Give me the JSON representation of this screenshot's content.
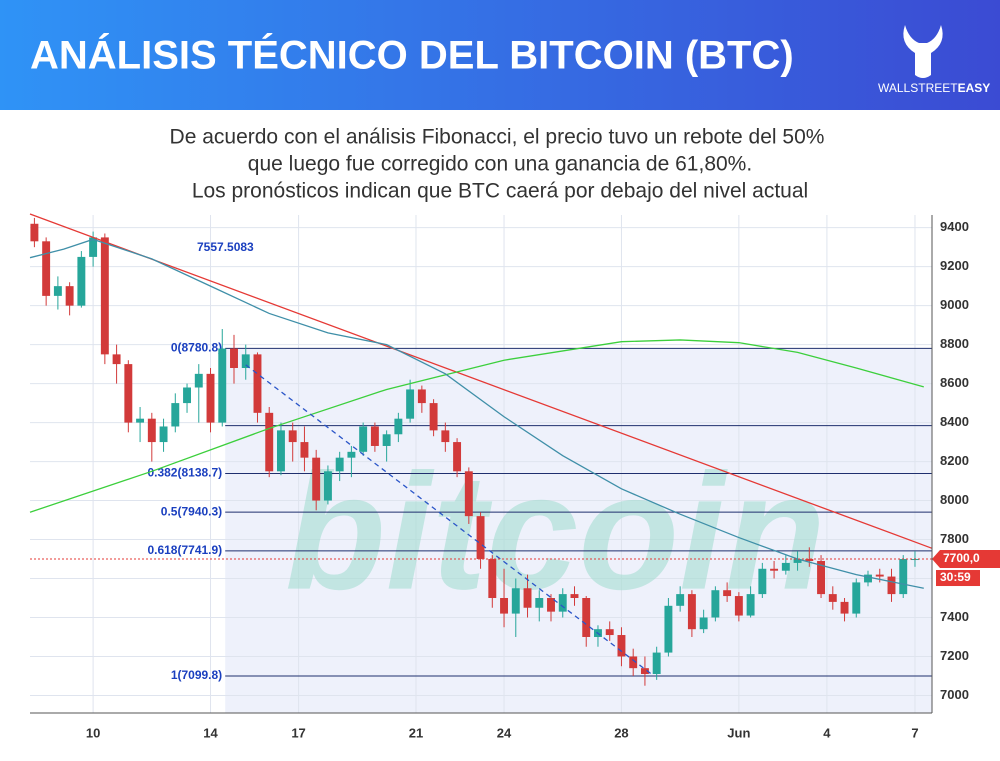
{
  "header": {
    "title": "ANÁLISIS TÉCNICO DEL BITCOIN (BTC)",
    "logo_light": "WALLSTREET",
    "logo_bold": "EASY"
  },
  "subtitle": [
    "De acuerdo con el análisis Fibonacci, el precio tuvo un rebote del 50%",
    "que luego fue corregido con una ganancia de 61,80%.",
    "Los pronósticos indican que BTC caerá por debajo del nivel actual"
  ],
  "chart_data": {
    "type": "candlestick",
    "watermark": "bitcoin",
    "xlim": [
      7.85,
      38.58
    ],
    "xticks": [
      10,
      14,
      17,
      21,
      24,
      28,
      {
        "value": 32,
        "label": "Jun"
      },
      {
        "value": 35,
        "label": "4"
      },
      {
        "value": 38,
        "label": "7"
      }
    ],
    "ylim": [
      6910,
      9465
    ],
    "yticks": [
      7000,
      7200,
      7400,
      7600,
      7800,
      8000,
      8200,
      8400,
      8600,
      8800,
      9000,
      9200,
      9400
    ],
    "grid": true,
    "up_color": "#26a69a",
    "down_color": "#d23a3a",
    "x": [
      8.0,
      8.4,
      8.8,
      9.2,
      9.6,
      10.0,
      10.4,
      10.8,
      11.2,
      11.6,
      12.0,
      12.4,
      12.8,
      13.2,
      13.6,
      14.0,
      14.4,
      14.8,
      15.2,
      15.6,
      16.0,
      16.4,
      16.8,
      17.2,
      17.6,
      18.0,
      18.4,
      18.8,
      19.2,
      19.6,
      20.0,
      20.4,
      20.8,
      21.2,
      21.6,
      22.0,
      22.4,
      22.8,
      23.2,
      23.6,
      24.0,
      24.4,
      24.8,
      25.2,
      25.6,
      26.0,
      26.4,
      26.8,
      27.2,
      27.6,
      28.0,
      28.4,
      28.8,
      29.2,
      29.6,
      30.0,
      30.4,
      30.8,
      31.2,
      31.6,
      32.0,
      32.4,
      32.8,
      33.2,
      33.6,
      34.0,
      34.4,
      34.8,
      35.2,
      35.6,
      36.0,
      36.4,
      36.8,
      37.2,
      37.6,
      38.0
    ],
    "open": [
      9420,
      9330,
      9050,
      9100,
      9000,
      9250,
      9350,
      8750,
      8700,
      8400,
      8420,
      8300,
      8380,
      8500,
      8580,
      8650,
      8400,
      8780,
      8680,
      8750,
      8450,
      8150,
      8360,
      8300,
      8220,
      8000,
      8150,
      8220,
      8250,
      8380,
      8280,
      8340,
      8420,
      8570,
      8500,
      8360,
      8300,
      8150,
      7920,
      7700,
      7500,
      7420,
      7550,
      7450,
      7500,
      7430,
      7520,
      7500,
      7300,
      7340,
      7310,
      7200,
      7140,
      7110,
      7220,
      7460,
      7520,
      7340,
      7400,
      7540,
      7510,
      7410,
      7520,
      7650,
      7640,
      7680,
      7700,
      7690,
      7520,
      7480,
      7420,
      7580,
      7620,
      7610,
      7520,
      7700
    ],
    "high": [
      9450,
      9350,
      9150,
      9120,
      9280,
      9380,
      9370,
      8800,
      8720,
      8480,
      8450,
      8420,
      8550,
      8600,
      8700,
      8680,
      8880,
      8850,
      8800,
      8760,
      8480,
      8400,
      8400,
      8380,
      8260,
      8180,
      8250,
      8280,
      8400,
      8400,
      8360,
      8450,
      8620,
      8590,
      8520,
      8400,
      8320,
      8170,
      7940,
      7720,
      7650,
      7600,
      7620,
      7540,
      7520,
      7550,
      7560,
      7510,
      7360,
      7380,
      7350,
      7240,
      7200,
      7250,
      7500,
      7560,
      7540,
      7440,
      7560,
      7580,
      7530,
      7560,
      7680,
      7690,
      7720,
      7740,
      7760,
      7720,
      7560,
      7500,
      7600,
      7640,
      7650,
      7650,
      7720,
      7740
    ],
    "low": [
      9300,
      9000,
      8980,
      8950,
      8990,
      9200,
      8700,
      8600,
      8350,
      8300,
      8200,
      8250,
      8350,
      8450,
      8400,
      8350,
      8380,
      8600,
      8620,
      8400,
      8120,
      8130,
      8200,
      8150,
      7950,
      7980,
      8100,
      8120,
      8230,
      8250,
      8200,
      8300,
      8400,
      8450,
      8330,
      8250,
      8120,
      7880,
      7650,
      7450,
      7350,
      7300,
      7400,
      7380,
      7380,
      7400,
      7460,
      7250,
      7250,
      7280,
      7150,
      7100,
      7050,
      7080,
      7200,
      7430,
      7300,
      7320,
      7380,
      7480,
      7380,
      7400,
      7500,
      7600,
      7620,
      7640,
      7660,
      7500,
      7440,
      7380,
      7400,
      7560,
      7580,
      7480,
      7500,
      7660
    ],
    "close": [
      9330,
      9050,
      9100,
      9000,
      9250,
      9350,
      8750,
      8700,
      8400,
      8420,
      8300,
      8380,
      8500,
      8580,
      8650,
      8400,
      8780,
      8680,
      8750,
      8450,
      8150,
      8360,
      8300,
      8220,
      8000,
      8150,
      8220,
      8250,
      8380,
      8280,
      8340,
      8420,
      8570,
      8500,
      8360,
      8300,
      8150,
      7920,
      7700,
      7500,
      7420,
      7550,
      7450,
      7500,
      7430,
      7520,
      7500,
      7300,
      7340,
      7310,
      7200,
      7140,
      7110,
      7220,
      7460,
      7520,
      7340,
      7400,
      7540,
      7510,
      7410,
      7520,
      7650,
      7640,
      7680,
      7700,
      7690,
      7520,
      7480,
      7420,
      7580,
      7620,
      7610,
      7520,
      7700,
      7700
    ],
    "lines": [
      {
        "color": "#e53935",
        "dashed": false,
        "x": [
          7.85,
          38.58
        ],
        "values": [
          9470,
          7755
        ]
      },
      {
        "color": "#3ccf3c",
        "dashed": false,
        "x": [
          7.85,
          12,
          16,
          20,
          24,
          28,
          30,
          32,
          34,
          36,
          38.3
        ],
        "values": [
          7940,
          8150,
          8370,
          8570,
          8720,
          8815,
          8824,
          8810,
          8760,
          8680,
          8583
        ]
      },
      {
        "color": "#3f8fa8",
        "dashed": false,
        "x": [
          7.85,
          9,
          10,
          12,
          14,
          16,
          18,
          20,
          22,
          24,
          26,
          28,
          30,
          32,
          34,
          36,
          38.3
        ],
        "values": [
          9246,
          9290,
          9340,
          9240,
          9100,
          8960,
          8860,
          8800,
          8650,
          8430,
          8230,
          8060,
          7930,
          7810,
          7700,
          7620,
          7550
        ]
      },
      {
        "color": "#2a55c8",
        "dashed": true,
        "x": [
          15.2,
          29.0
        ],
        "values": [
          8696,
          7112
        ]
      }
    ],
    "fib_start_x": 14.5,
    "fib_levels": [
      {
        "value": 8780.8,
        "label": "0(8780.8)"
      },
      {
        "value": 8138.7,
        "label": "0.382(8138.7)"
      },
      {
        "value": 7940.3,
        "label": "0.5(7940.3)"
      },
      {
        "value": 7741.9,
        "label": "0.618(7741.9)"
      },
      {
        "value": 7099.8,
        "label": "1(7099.8)"
      }
    ],
    "fib_unlabeled_levels": [
      8384.1
    ],
    "annotation": "7557.5083",
    "current_price": {
      "value": 7700,
      "label": "7700,0"
    },
    "timer": "30:59"
  }
}
